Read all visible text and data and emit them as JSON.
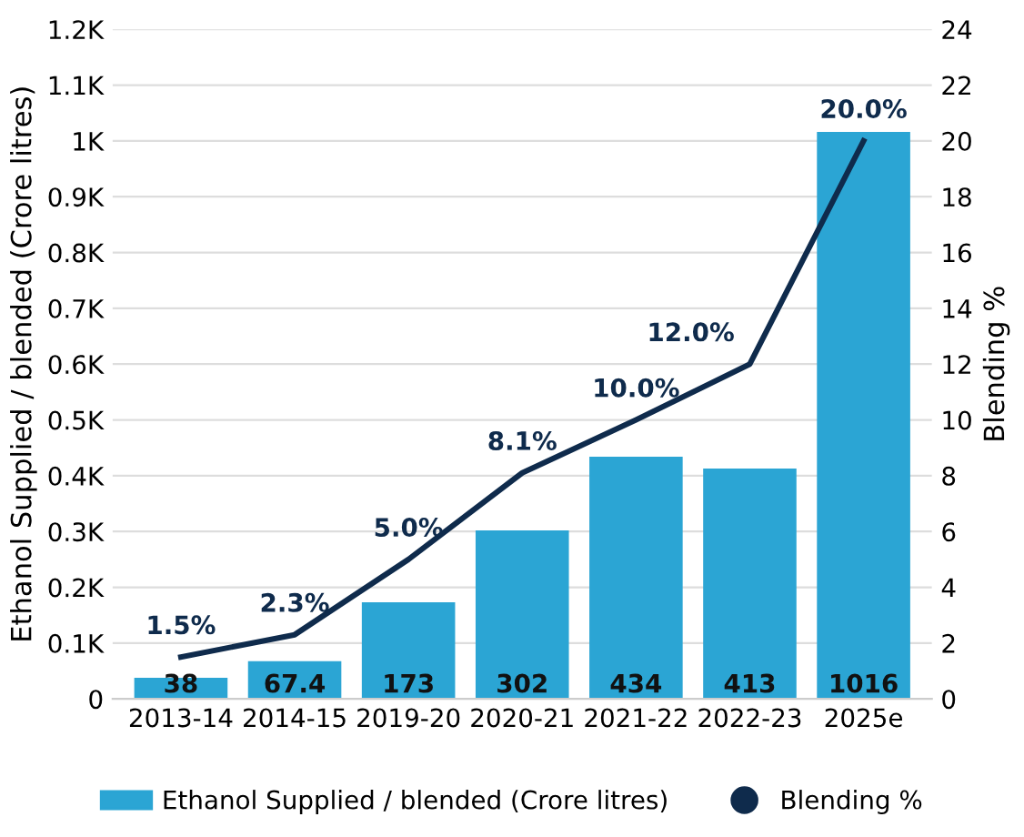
{
  "chart_data": {
    "type": "bar",
    "categories": [
      "2013-14",
      "2014-15",
      "2019-20",
      "2020-21",
      "2021-22",
      "2022-23",
      "2025e"
    ],
    "series": [
      {
        "name": "Ethanol Supplied / blended (Crore litres)",
        "color": "#2ba5d4",
        "values": [
          38,
          67.4,
          173,
          302,
          434,
          413,
          1016
        ],
        "value_labels": [
          "38",
          "67.4",
          "173",
          "302",
          "434",
          "413",
          "1016"
        ]
      },
      {
        "name": "Blending %",
        "type": "line",
        "axis": "y2",
        "color": "#0f2b4c",
        "values": [
          1.5,
          2.3,
          5.0,
          8.1,
          10.0,
          12.0,
          20.0
        ],
        "value_labels": [
          "1.5%",
          "2.3%",
          "5.0%",
          "8.1%",
          "10.0%",
          "12.0%",
          "20.0%"
        ]
      }
    ],
    "ylabel": "Ethanol Supplied / blended (Crore litres)",
    "y2label": "Blending %",
    "ylim": [
      0,
      1200
    ],
    "yticks": [
      0,
      {
        "value": 100,
        "label": "0.1K"
      },
      {
        "value": 200,
        "label": "0.2K"
      },
      {
        "value": 300,
        "label": "0.3K"
      },
      {
        "value": 400,
        "label": "0.4K"
      },
      {
        "value": 500,
        "label": "0.5K"
      },
      {
        "value": 600,
        "label": "0.6K"
      },
      {
        "value": 700,
        "label": "0.7K"
      },
      {
        "value": 800,
        "label": "0.8K"
      },
      {
        "value": 900,
        "label": "0.9K"
      },
      {
        "value": 1000,
        "label": "1K"
      },
      {
        "value": 1100,
        "label": "1.1K"
      },
      {
        "value": 1200,
        "label": "1.2K"
      }
    ],
    "y2lim": [
      0,
      24
    ],
    "y2ticks": [
      0,
      2,
      4,
      6,
      8,
      10,
      12,
      14,
      16,
      18,
      20,
      22,
      24
    ],
    "grid": "y",
    "legend": "bottom"
  }
}
